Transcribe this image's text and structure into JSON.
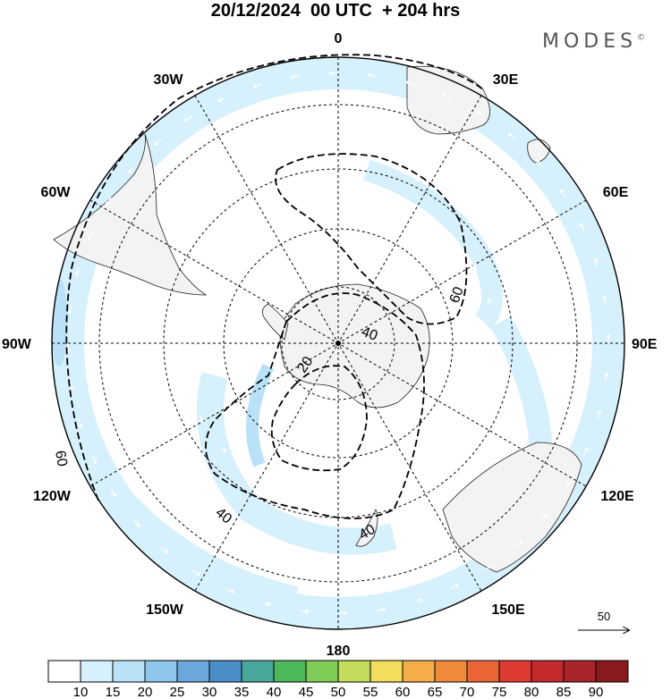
{
  "title": "20/12/2024  00 UTC  + 204 hrs",
  "logo": {
    "text": "MODES",
    "mark": "©"
  },
  "map": {
    "projection": "south-polar-stereographic",
    "longitude_labels": [
      {
        "lon": 0,
        "text": "0"
      },
      {
        "lon": 30,
        "text": "30E"
      },
      {
        "lon": 60,
        "text": "60E"
      },
      {
        "lon": 90,
        "text": "90E"
      },
      {
        "lon": 120,
        "text": "120E"
      },
      {
        "lon": 150,
        "text": "150E"
      },
      {
        "lon": 180,
        "text": "180"
      },
      {
        "lon": -150,
        "text": "150W"
      },
      {
        "lon": -120,
        "text": "120W"
      },
      {
        "lon": -90,
        "text": "90W"
      },
      {
        "lon": -60,
        "text": "60W"
      },
      {
        "lon": -30,
        "text": "30W"
      }
    ],
    "contour_labels": [
      "60",
      "40",
      "20",
      "40",
      "40",
      "60"
    ]
  },
  "reference_vector": {
    "label": "50"
  },
  "colorbar": {
    "labels": [
      "10",
      "15",
      "20",
      "25",
      "30",
      "35",
      "40",
      "45",
      "50",
      "55",
      "60",
      "65",
      "70",
      "75",
      "80",
      "85",
      "90"
    ],
    "colors": [
      "#ffffff",
      "#d6f0fc",
      "#b9e2f8",
      "#8ec6ec",
      "#6aa8dc",
      "#4b8dc8",
      "#4aa89a",
      "#4db85a",
      "#7fcc56",
      "#c2dc5c",
      "#f4dd5c",
      "#f4ad48",
      "#f08a3a",
      "#ea6436",
      "#dc3a32",
      "#c32a2c",
      "#a8232a",
      "#8a1a1e"
    ]
  }
}
